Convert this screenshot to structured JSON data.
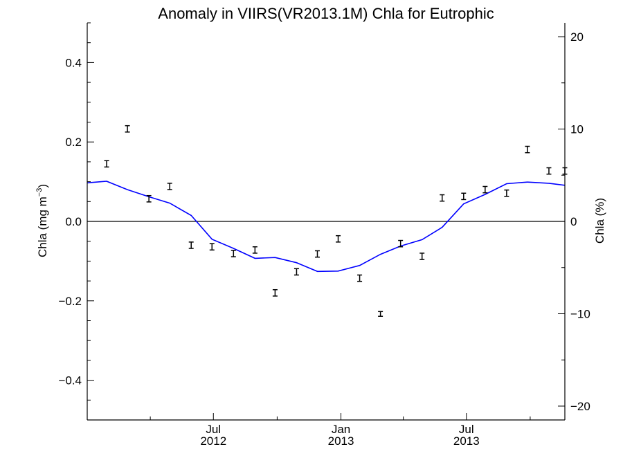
{
  "chart_data": {
    "type": "line",
    "title": "Anomaly in VIIRS(VR2013.1M) Chla for Eutrophic",
    "ylabel_main": "Chla (mg m",
    "ylabel_sup": "−3",
    "ylabel_close": ")",
    "ylabel_right": "Chla (%)",
    "xlim": [
      "2012-01-01",
      "2013-11-20"
    ],
    "ylim": [
      -0.5,
      0.5
    ],
    "ylim_right": [
      -21.5,
      21.5
    ],
    "grid": false,
    "zero_line": true,
    "x_tick_labels": [
      {
        "date": "2012-07-01",
        "month": "Jul",
        "year": "2012"
      },
      {
        "date": "2013-01-01",
        "month": "Jan",
        "year": "2013"
      },
      {
        "date": "2013-07-01",
        "month": "Jul",
        "year": "2013"
      }
    ],
    "y_ticks": [
      {
        "value": 0.4,
        "label": "0.4"
      },
      {
        "value": 0.2,
        "label": "0.2"
      },
      {
        "value": 0.0,
        "label": "0.0"
      },
      {
        "value": -0.2,
        "label": "−0.2"
      },
      {
        "value": -0.4,
        "label": "−0.4"
      }
    ],
    "y_ticks_right": [
      {
        "value": 20,
        "label": "20"
      },
      {
        "value": 10,
        "label": "10"
      },
      {
        "value": 0,
        "label": "0"
      },
      {
        "value": -10,
        "label": "−10"
      },
      {
        "value": -20,
        "label": "−20"
      }
    ],
    "series": [
      {
        "kind": "line",
        "color": "#0000ff",
        "x": [
          "2012-01-01",
          "2012-01-29",
          "2012-02-28",
          "2012-03-30",
          "2012-04-29",
          "2012-05-30",
          "2012-06-29",
          "2012-07-30",
          "2012-08-30",
          "2012-09-28",
          "2012-10-29",
          "2012-11-28",
          "2012-12-28",
          "2013-01-28",
          "2013-02-27",
          "2013-03-28",
          "2013-04-28",
          "2013-05-27",
          "2013-06-27",
          "2013-07-28",
          "2013-08-28",
          "2013-09-27",
          "2013-10-28",
          "2013-11-20"
        ],
        "y": [
          0.097,
          0.101,
          0.08,
          0.062,
          0.046,
          0.015,
          -0.045,
          -0.068,
          -0.093,
          -0.091,
          -0.104,
          -0.126,
          -0.125,
          -0.111,
          -0.083,
          -0.062,
          -0.046,
          -0.015,
          0.044,
          0.068,
          0.095,
          0.099,
          0.096,
          0.091
        ]
      },
      {
        "kind": "errorbar",
        "color": "#000000",
        "x": [
          "2012-01-29",
          "2012-02-28",
          "2012-03-30",
          "2012-04-29",
          "2012-05-30",
          "2012-06-29",
          "2012-07-30",
          "2012-08-30",
          "2012-09-28",
          "2012-10-29",
          "2012-11-28",
          "2012-12-28",
          "2013-01-28",
          "2013-02-27",
          "2013-03-28",
          "2013-04-28",
          "2013-05-27",
          "2013-06-27",
          "2013-07-28",
          "2013-08-28",
          "2013-09-27",
          "2013-10-28",
          "2013-11-20"
        ],
        "y": [
          0.145,
          0.233,
          0.057,
          0.088,
          -0.06,
          -0.064,
          -0.081,
          -0.072,
          -0.18,
          -0.127,
          -0.082,
          -0.044,
          -0.143,
          -0.233,
          -0.056,
          -0.088,
          0.059,
          0.063,
          0.08,
          0.071,
          0.181,
          0.127,
          0.127
        ],
        "err": [
          0.008,
          0.008,
          0.008,
          0.008,
          0.008,
          0.008,
          0.008,
          0.008,
          0.008,
          0.008,
          0.008,
          0.008,
          0.008,
          0.006,
          0.008,
          0.008,
          0.008,
          0.008,
          0.008,
          0.008,
          0.008,
          0.008,
          0.008
        ]
      }
    ]
  }
}
